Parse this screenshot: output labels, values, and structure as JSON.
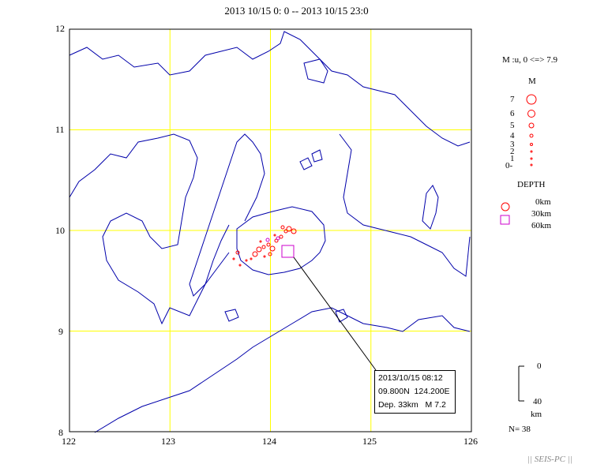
{
  "title": "2013 10/15 0: 0 -- 2013 10/15 23:0",
  "map": {
    "lat_labels": [
      "12",
      "11",
      "10",
      "9",
      "8"
    ],
    "lon_labels": [
      "122",
      "123",
      "124",
      "125",
      "126"
    ],
    "lat_range": [
      8,
      12
    ],
    "lon_range": [
      122,
      126
    ],
    "grid_color": "#ffff00",
    "coast_color": "#0000aa"
  },
  "legend": {
    "mag_range": "M :u, 0 <=> 7.9",
    "mag_header": "M",
    "mag_levels": [
      "7",
      "6",
      "5",
      "4",
      "3",
      "2",
      "1",
      "0-"
    ],
    "depth_header": "DEPTH",
    "depth_levels": [
      {
        "label": "0km",
        "shape": "circle",
        "color": "#ff0000"
      },
      {
        "label": "30km",
        "shape": "circle",
        "color": "#ff0000"
      },
      {
        "label": "60km",
        "shape": "square",
        "color": "#cc00cc"
      }
    ],
    "depth_scale_top": "0",
    "depth_scale_bottom": "40",
    "depth_scale_unit": "km",
    "count": "N= 38"
  },
  "mainshock": {
    "datetime": "2013/10/15 08:12",
    "lat": "09.800N",
    "lon": "124.200E",
    "depth": "Dep. 33km",
    "mag": "M 7.2",
    "lat_value": 9.8,
    "lon_value": 124.2
  },
  "footer": "|| SEIS-PC ||"
}
